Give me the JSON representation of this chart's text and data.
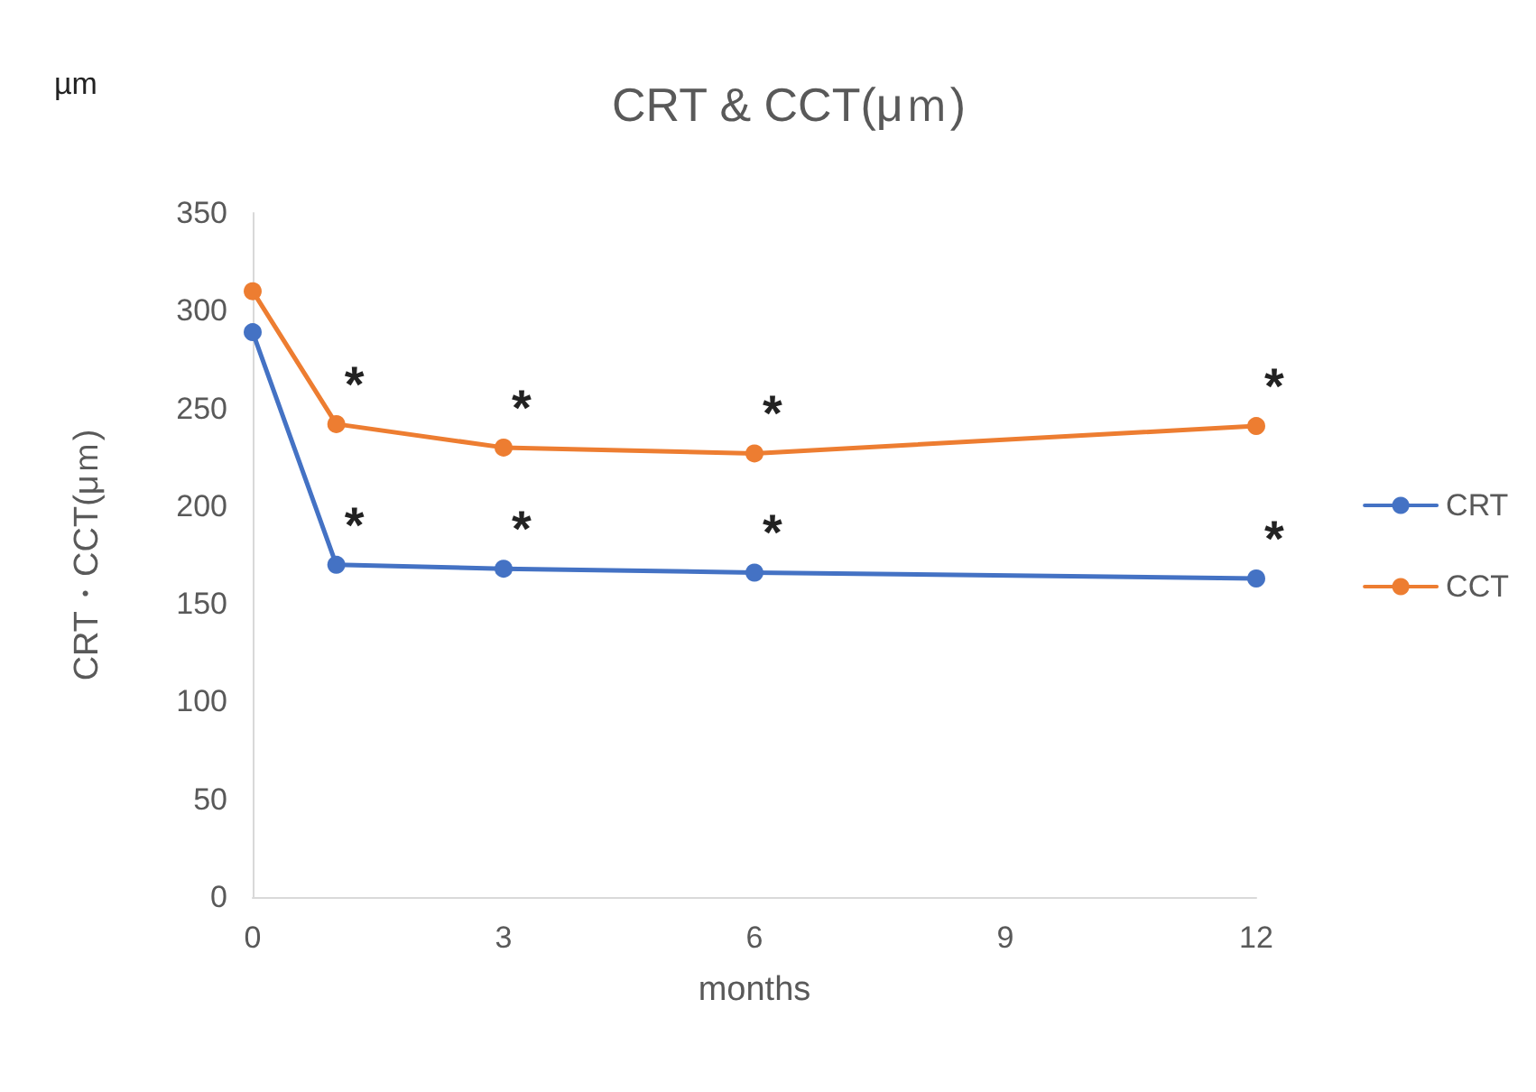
{
  "chart_data": {
    "type": "line",
    "title": "CRT & CCT(μｍ)",
    "xlabel": "months",
    "ylabel": "CRT・CCT(μｍ)",
    "x": [
      0,
      1,
      3,
      6,
      12
    ],
    "series": [
      {
        "name": "CRT",
        "color": "#4472c4",
        "values": [
          289,
          170,
          168,
          166,
          163
        ]
      },
      {
        "name": "CCT",
        "color": "#ed7d31",
        "values": [
          310,
          242,
          230,
          227,
          241
        ]
      }
    ],
    "xlim": [
      0,
      12
    ],
    "xticks": [
      0,
      3,
      6,
      9,
      12
    ],
    "ylim": [
      0,
      350
    ],
    "yticks": [
      0,
      50,
      100,
      150,
      200,
      250,
      300,
      350
    ],
    "grid": false,
    "legend": "right",
    "marker": "circle",
    "line_style": "solid",
    "annotations": [
      "µm",
      {
        "text": "*",
        "x": 1,
        "y": 242
      },
      {
        "text": "*",
        "x": 3,
        "y": 230
      },
      {
        "text": "*",
        "x": 6,
        "y": 227
      },
      {
        "text": "*",
        "x": 12,
        "y": 241
      },
      {
        "text": "*",
        "x": 1,
        "y": 170
      },
      {
        "text": "*",
        "x": 3,
        "y": 168
      },
      {
        "text": "*",
        "x": 6,
        "y": 166
      },
      {
        "text": "*",
        "x": 12,
        "y": 163
      }
    ]
  }
}
